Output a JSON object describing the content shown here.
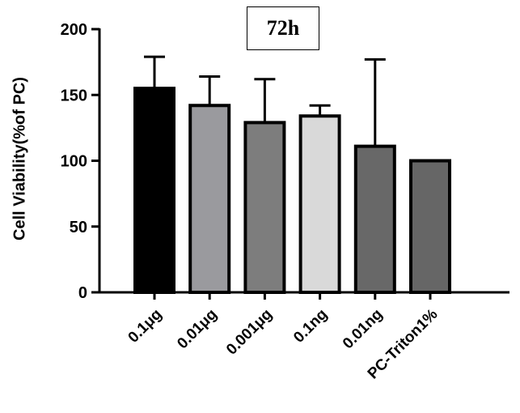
{
  "chart_data": {
    "type": "bar",
    "title": "72h",
    "ylabel": "Cell Viability(%of PC)",
    "xlabel": "",
    "ylim": [
      0,
      200
    ],
    "yticks": [
      0,
      50,
      100,
      150,
      200
    ],
    "categories": [
      "0.1μg",
      "0.01μg",
      "0.001μg",
      "0.1ng",
      "0.01ng",
      "PC-Triton1%"
    ],
    "values": [
      155,
      142,
      129,
      134,
      111,
      100
    ],
    "errors": [
      24,
      22,
      33,
      8,
      66,
      0
    ],
    "colors": [
      "#000000",
      "#9a9a9e",
      "#7d7d7d",
      "#d9d9d9",
      "#686868",
      "#666666"
    ],
    "grid": false,
    "legend": "none"
  }
}
